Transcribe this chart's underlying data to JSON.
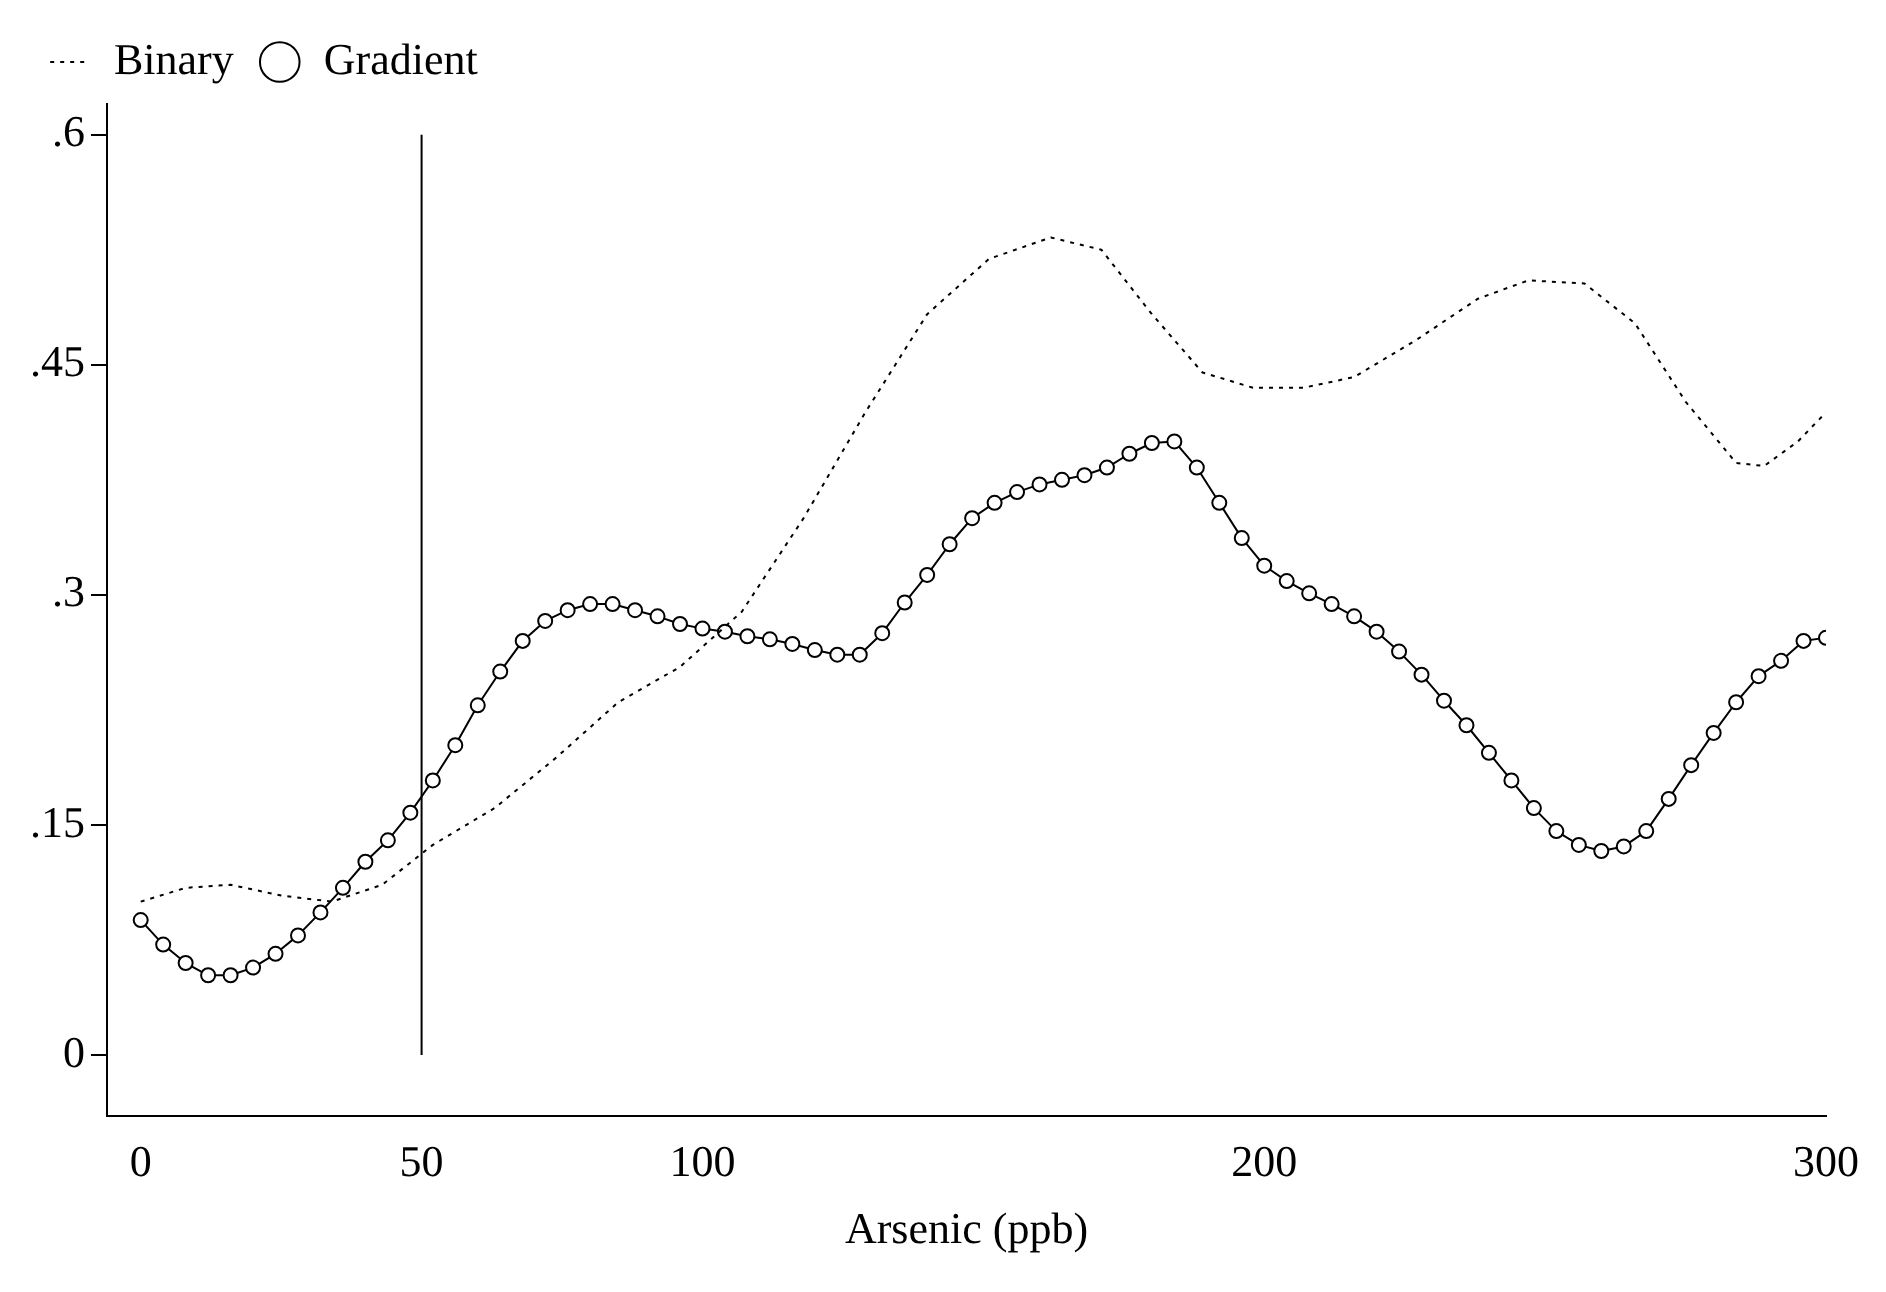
{
  "chart_data": {
    "type": "line",
    "xlabel": "Arsenic (ppb)",
    "xlim": [
      -6,
      300
    ],
    "xticks": [
      0,
      50,
      100,
      200,
      300
    ],
    "ylim": [
      -0.04,
      0.62
    ],
    "yticks": [
      {
        "value": 0,
        "label": "0"
      },
      {
        "value": 0.15,
        "label": ".15"
      },
      {
        "value": 0.3,
        "label": ".3"
      },
      {
        "value": 0.45,
        "label": ".45"
      },
      {
        "value": 0.6,
        "label": ".6"
      }
    ],
    "grid": false,
    "legend": "top",
    "ref_lines": [
      {
        "axis": "x",
        "value": 50,
        "color": "#000000",
        "line_style": "solid"
      }
    ],
    "series": [
      {
        "name": "Binary",
        "color": "#000000",
        "line_style": "dotted",
        "marker": "none",
        "x": [
          0,
          8,
          16,
          25,
          34,
          43,
          52,
          63,
          74,
          85,
          96,
          107,
          118,
          129,
          140,
          151,
          162,
          171,
          180,
          189,
          198,
          207,
          216,
          227,
          238,
          247,
          257,
          266,
          275,
          284,
          289,
          295,
          300
        ],
        "values": [
          0.1,
          0.109,
          0.111,
          0.104,
          0.1,
          0.111,
          0.137,
          0.161,
          0.194,
          0.23,
          0.253,
          0.289,
          0.35,
          0.419,
          0.483,
          0.519,
          0.533,
          0.525,
          0.483,
          0.445,
          0.435,
          0.435,
          0.442,
          0.466,
          0.493,
          0.505,
          0.503,
          0.477,
          0.426,
          0.386,
          0.384,
          0.4,
          0.419
        ]
      },
      {
        "name": "Gradient",
        "color": "#000000",
        "line_style": "solid",
        "marker": "circle",
        "x": [
          0,
          4,
          8,
          12,
          16,
          20,
          24,
          28,
          32,
          36,
          40,
          44,
          48,
          52,
          56,
          60,
          64,
          68,
          72,
          76,
          80,
          84,
          88,
          92,
          96,
          100,
          104,
          108,
          112,
          116,
          120,
          124,
          128,
          132,
          136,
          140,
          144,
          148,
          152,
          156,
          160,
          164,
          168,
          172,
          176,
          180,
          184,
          188,
          192,
          196,
          200,
          204,
          208,
          212,
          216,
          220,
          224,
          228,
          232,
          236,
          240,
          244,
          248,
          252,
          256,
          260,
          264,
          268,
          272,
          276,
          280,
          284,
          288,
          292,
          296,
          300
        ],
        "values": [
          0.088,
          0.072,
          0.06,
          0.052,
          0.052,
          0.057,
          0.066,
          0.078,
          0.093,
          0.109,
          0.126,
          0.14,
          0.158,
          0.179,
          0.202,
          0.228,
          0.25,
          0.27,
          0.283,
          0.29,
          0.294,
          0.294,
          0.29,
          0.286,
          0.281,
          0.278,
          0.276,
          0.273,
          0.271,
          0.268,
          0.264,
          0.261,
          0.261,
          0.275,
          0.295,
          0.313,
          0.333,
          0.35,
          0.36,
          0.367,
          0.372,
          0.375,
          0.378,
          0.383,
          0.392,
          0.399,
          0.4,
          0.383,
          0.36,
          0.337,
          0.319,
          0.309,
          0.301,
          0.294,
          0.286,
          0.276,
          0.263,
          0.248,
          0.231,
          0.215,
          0.197,
          0.179,
          0.161,
          0.146,
          0.137,
          0.133,
          0.136,
          0.146,
          0.167,
          0.189,
          0.21,
          0.23,
          0.247,
          0.257,
          0.27,
          0.272
        ]
      }
    ]
  }
}
